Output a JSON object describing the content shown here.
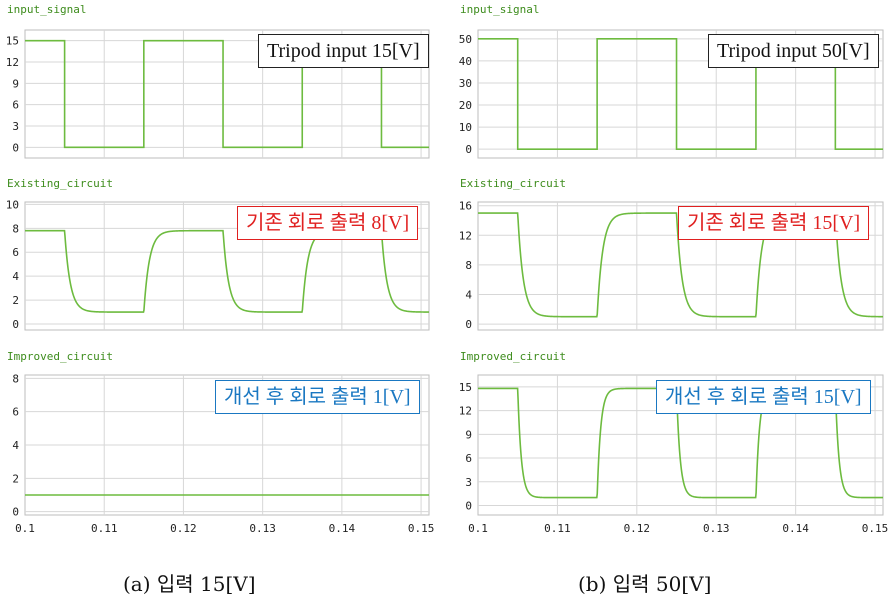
{
  "chart_data": [
    {
      "type": "line",
      "column": "a",
      "row": 0,
      "title": "input_signal",
      "yticks": [
        "0",
        "3",
        "6",
        "9",
        "12",
        "15"
      ],
      "ylim": [
        -1.5,
        16.5
      ],
      "xlim": [
        0.1,
        0.151
      ],
      "show_xticks": false,
      "series": [
        {
          "x": [
            0.1,
            0.105,
            0.105,
            0.115,
            0.115,
            0.125,
            0.125,
            0.135,
            0.135,
            0.145,
            0.145,
            0.151
          ],
          "y": [
            15,
            15,
            0,
            0,
            15,
            15,
            0,
            0,
            15,
            15,
            0,
            0
          ]
        }
      ],
      "annotation": {
        "text": "Tripod input 15[V]",
        "color": "black"
      }
    },
    {
      "type": "line",
      "column": "a",
      "row": 1,
      "title": "Existing_circuit",
      "yticks": [
        "0",
        "2",
        "4",
        "6",
        "8",
        "10"
      ],
      "ylim": [
        -0.5,
        10.2
      ],
      "xlim": [
        0.1,
        0.151
      ],
      "show_xticks": false,
      "series": [
        {
          "shape": "rc_square",
          "high": 7.8,
          "low": 1.0,
          "tau": 0.0007
        }
      ],
      "annotation": {
        "text": "기존 회로 출력 8[V]",
        "color": "red"
      }
    },
    {
      "type": "line",
      "column": "a",
      "row": 2,
      "title": "Improved_circuit",
      "yticks": [
        "0",
        "2",
        "4",
        "6",
        "8"
      ],
      "ylim": [
        -0.2,
        8.2
      ],
      "xlim": [
        0.1,
        0.151
      ],
      "show_xticks": true,
      "xticks": [
        "0.1",
        "0.11",
        "0.12",
        "0.13",
        "0.14",
        "0.15"
      ],
      "series": [
        {
          "x": [
            0.1,
            0.151
          ],
          "y": [
            1.0,
            1.0
          ]
        }
      ],
      "annotation": {
        "text": "개선 후 회로 출력 1[V]",
        "color": "blue"
      }
    },
    {
      "type": "line",
      "column": "b",
      "row": 0,
      "title": "input_signal",
      "yticks": [
        "0",
        "10",
        "20",
        "30",
        "40",
        "50"
      ],
      "ylim": [
        -4,
        54
      ],
      "xlim": [
        0.1,
        0.151
      ],
      "show_xticks": false,
      "series": [
        {
          "x": [
            0.1,
            0.105,
            0.105,
            0.115,
            0.115,
            0.125,
            0.125,
            0.135,
            0.135,
            0.145,
            0.145,
            0.151
          ],
          "y": [
            50,
            50,
            0,
            0,
            50,
            50,
            0,
            0,
            50,
            50,
            0,
            0
          ]
        }
      ],
      "annotation": {
        "text": "Tripod input 50[V]",
        "color": "black"
      }
    },
    {
      "type": "line",
      "column": "b",
      "row": 1,
      "title": "Existing_circuit",
      "yticks": [
        "0",
        "4",
        "8",
        "12",
        "16"
      ],
      "ylim": [
        -0.8,
        16.5
      ],
      "xlim": [
        0.1,
        0.151
      ],
      "show_xticks": false,
      "series": [
        {
          "shape": "rc_square",
          "high": 15.0,
          "low": 1.0,
          "tau": 0.0007
        }
      ],
      "annotation": {
        "text": "기존 회로 출력 15[V]",
        "color": "red"
      }
    },
    {
      "type": "line",
      "column": "b",
      "row": 2,
      "title": "Improved_circuit",
      "yticks": [
        "0",
        "3",
        "6",
        "9",
        "12",
        "15"
      ],
      "ylim": [
        -1.2,
        16.5
      ],
      "xlim": [
        0.1,
        0.151
      ],
      "show_xticks": true,
      "xticks": [
        "0.1",
        "0.11",
        "0.12",
        "0.13",
        "0.14",
        "0.15"
      ],
      "series": [
        {
          "shape": "rc_square",
          "high": 14.8,
          "low": 1.0,
          "tau": 0.00045
        }
      ],
      "annotation": {
        "text": "개선 후 회로 출력 15[V]",
        "color": "blue"
      }
    }
  ],
  "captions": {
    "a": "(a) 입력 15[V]",
    "b": "(b) 입력 50[V]"
  },
  "colors": {
    "trace": "#6dbb3f",
    "grid": "#d7d7d7",
    "title": "#3d8c1c"
  }
}
